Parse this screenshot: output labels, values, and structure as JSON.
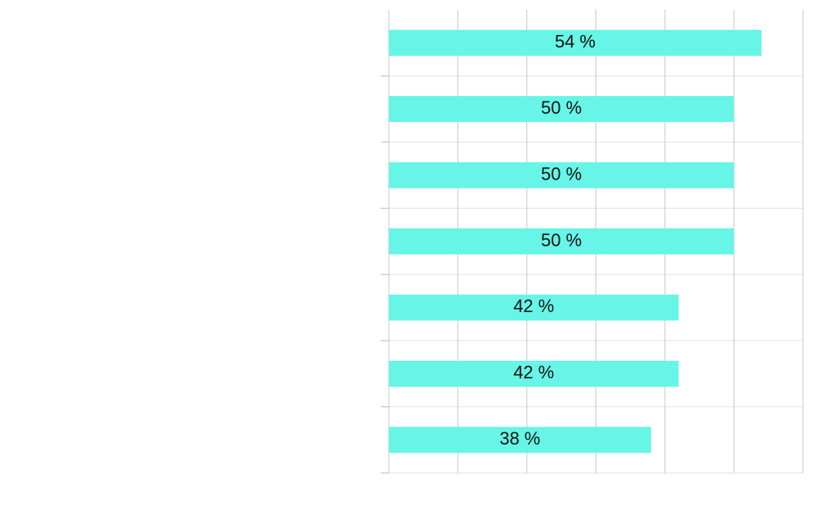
{
  "chart_data": {
    "type": "bar",
    "orientation": "horizontal",
    "categories": [
      null,
      null,
      null,
      null,
      null,
      null,
      null
    ],
    "values": [
      54,
      50,
      50,
      50,
      42,
      42,
      38
    ],
    "value_labels": [
      "54 %",
      "50 %",
      "50 %",
      "50 %",
      "42 %",
      "42 %",
      "38 %"
    ],
    "color": "#66f5e6",
    "xlim": [
      0,
      60
    ],
    "xticks": [
      0,
      10,
      20,
      30,
      40,
      50,
      60
    ],
    "grid": true
  }
}
